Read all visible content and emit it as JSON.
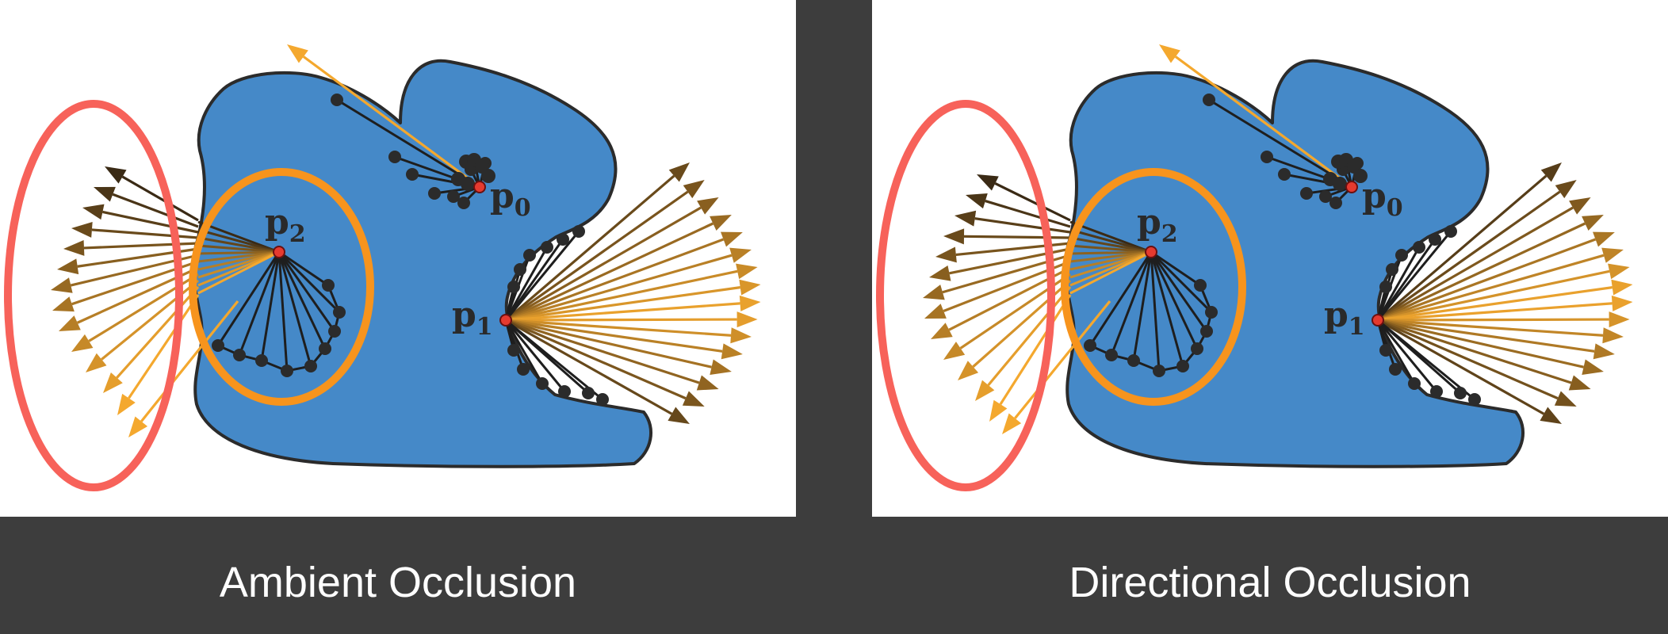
{
  "panels": [
    {
      "id": "left",
      "caption": "Ambient Occlusion",
      "points": [
        {
          "id": "p0",
          "label": "p",
          "subscript": "0"
        },
        {
          "id": "p1",
          "label": "p",
          "subscript": "1"
        },
        {
          "id": "p2",
          "label": "p",
          "subscript": "2"
        }
      ]
    },
    {
      "id": "right",
      "caption": "Directional Occlusion",
      "points": [
        {
          "id": "p0",
          "label": "p",
          "subscript": "0"
        },
        {
          "id": "p1",
          "label": "p",
          "subscript": "1"
        },
        {
          "id": "p2",
          "label": "p",
          "subscript": "2"
        }
      ]
    }
  ],
  "colors": {
    "background": "#3d3d3d",
    "panel": "#ffffff",
    "shape_fill": "#4589c8",
    "shape_stroke": "#2b2b2b",
    "ray_dark": "#3a2a15",
    "ray_light": "#f4a82e",
    "inner_ellipse": "#f7941d",
    "outer_ellipse": "#f7625a",
    "hit_point": "#2b2b2b",
    "sample_point": "#e53a2f"
  }
}
